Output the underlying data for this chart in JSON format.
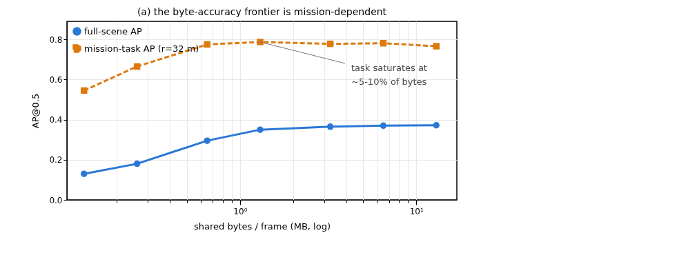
{
  "chart_data": {
    "type": "line",
    "title": "(a) the byte-accuracy frontier is mission-dependent",
    "xlabel": "shared bytes / frame (MB, log)",
    "ylabel": "AP@0.5",
    "x": [
      0.13,
      0.26,
      0.65,
      1.3,
      3.25,
      6.5,
      13
    ],
    "series": [
      {
        "name": "full-scene AP",
        "color": "#2a77d6",
        "marker": "circle",
        "line_style": "solid",
        "values": [
          0.13,
          0.18,
          0.295,
          0.35,
          0.365,
          0.37,
          0.372
        ]
      },
      {
        "name": "mission-task AP (r=32 m)",
        "color": "#dd7a0e",
        "marker": "square",
        "line_style": "dashed",
        "values": [
          0.545,
          0.665,
          0.775,
          0.787,
          0.778,
          0.781,
          0.766
        ]
      }
    ],
    "log": "x",
    "xlim": [
      0.104,
      17
    ],
    "ylim": [
      0,
      0.89
    ],
    "xticks": [
      {
        "value": 0.2,
        "label": null
      },
      {
        "value": 0.3,
        "label": null
      },
      {
        "value": 0.4,
        "label": null
      },
      {
        "value": 0.5,
        "label": null
      },
      {
        "value": 0.6,
        "label": null
      },
      {
        "value": 0.7,
        "label": null
      },
      {
        "value": 0.8,
        "label": null
      },
      {
        "value": 0.9,
        "label": null
      },
      {
        "value": 1,
        "label": "10⁰"
      },
      {
        "value": 2,
        "label": null
      },
      {
        "value": 3,
        "label": null
      },
      {
        "value": 4,
        "label": null
      },
      {
        "value": 5,
        "label": null
      },
      {
        "value": 6,
        "label": null
      },
      {
        "value": 7,
        "label": null
      },
      {
        "value": 8,
        "label": null
      },
      {
        "value": 9,
        "label": null
      },
      {
        "value": 10,
        "label": "10¹"
      }
    ],
    "yticks": [
      {
        "value": 0,
        "label": "0.0"
      },
      {
        "value": 0.2,
        "label": "0.2"
      },
      {
        "value": 0.4,
        "label": "0.4"
      },
      {
        "value": 0.6,
        "label": "0.6"
      },
      {
        "value": 0.8,
        "label": "0.8"
      }
    ],
    "grid": true,
    "legend": "top left",
    "annotations": [
      {
        "text": "task saturates at\n~5-10% of bytes",
        "x": 1.3,
        "y": 0.787
      }
    ]
  }
}
